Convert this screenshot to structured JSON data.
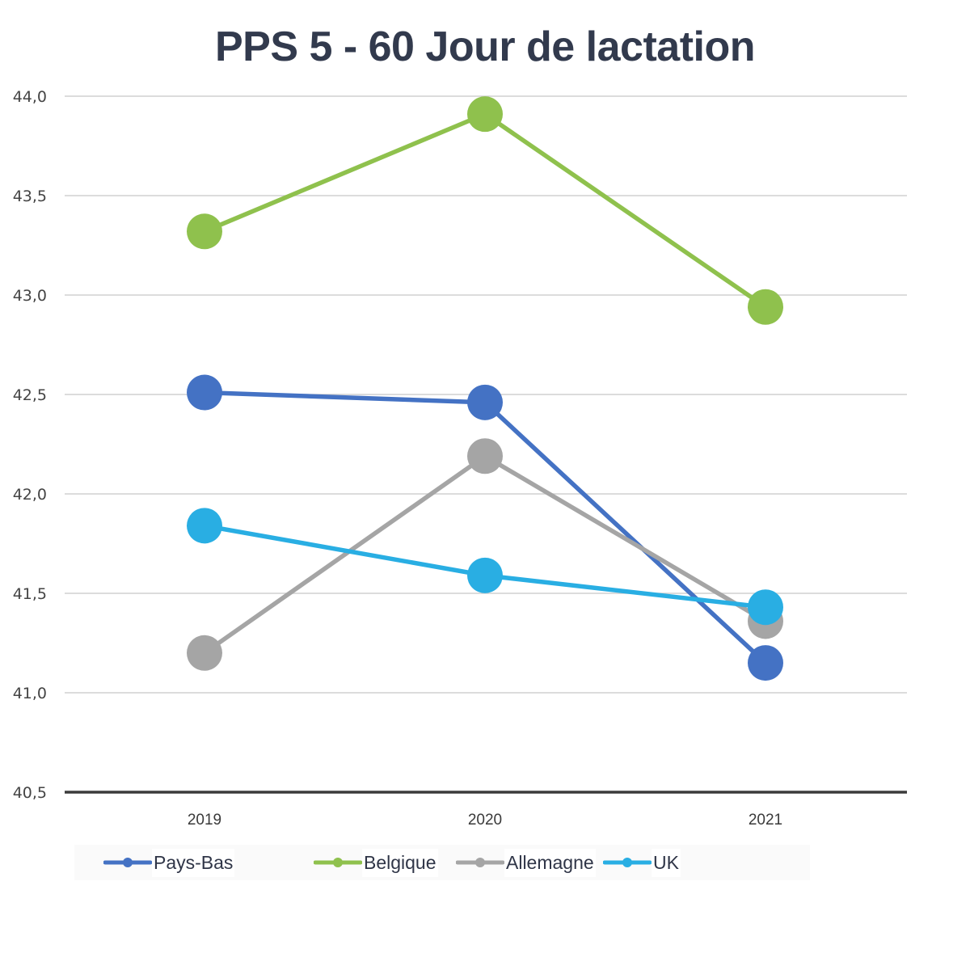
{
  "chart_data": {
    "type": "line",
    "title": "PPS 5 - 60 Jour de lactation",
    "xlabel": "",
    "ylabel": "",
    "categories": [
      "2019",
      "2020",
      "2021"
    ],
    "ylim": [
      40.5,
      44.0
    ],
    "yticks": [
      "44,0",
      "43,5",
      "43,0",
      "42,5",
      "42,0",
      "41,5",
      "41,0",
      "40,5"
    ],
    "ytick_values": [
      44.0,
      43.5,
      43.0,
      42.5,
      42.0,
      41.5,
      41.0,
      40.5
    ],
    "grid": true,
    "legend_position": "bottom",
    "series": [
      {
        "name": "Pays-Bas",
        "color": "#4472c4",
        "values": [
          42.51,
          42.46,
          41.15
        ]
      },
      {
        "name": "Belgique",
        "color": "#8fc14d",
        "values": [
          43.32,
          43.91,
          42.94
        ]
      },
      {
        "name": "Allemagne",
        "color": "#a5a5a5",
        "values": [
          41.2,
          42.19,
          41.36
        ]
      },
      {
        "name": "UK",
        "color": "#29aee3",
        "values": [
          41.84,
          41.59,
          41.43
        ]
      }
    ]
  }
}
